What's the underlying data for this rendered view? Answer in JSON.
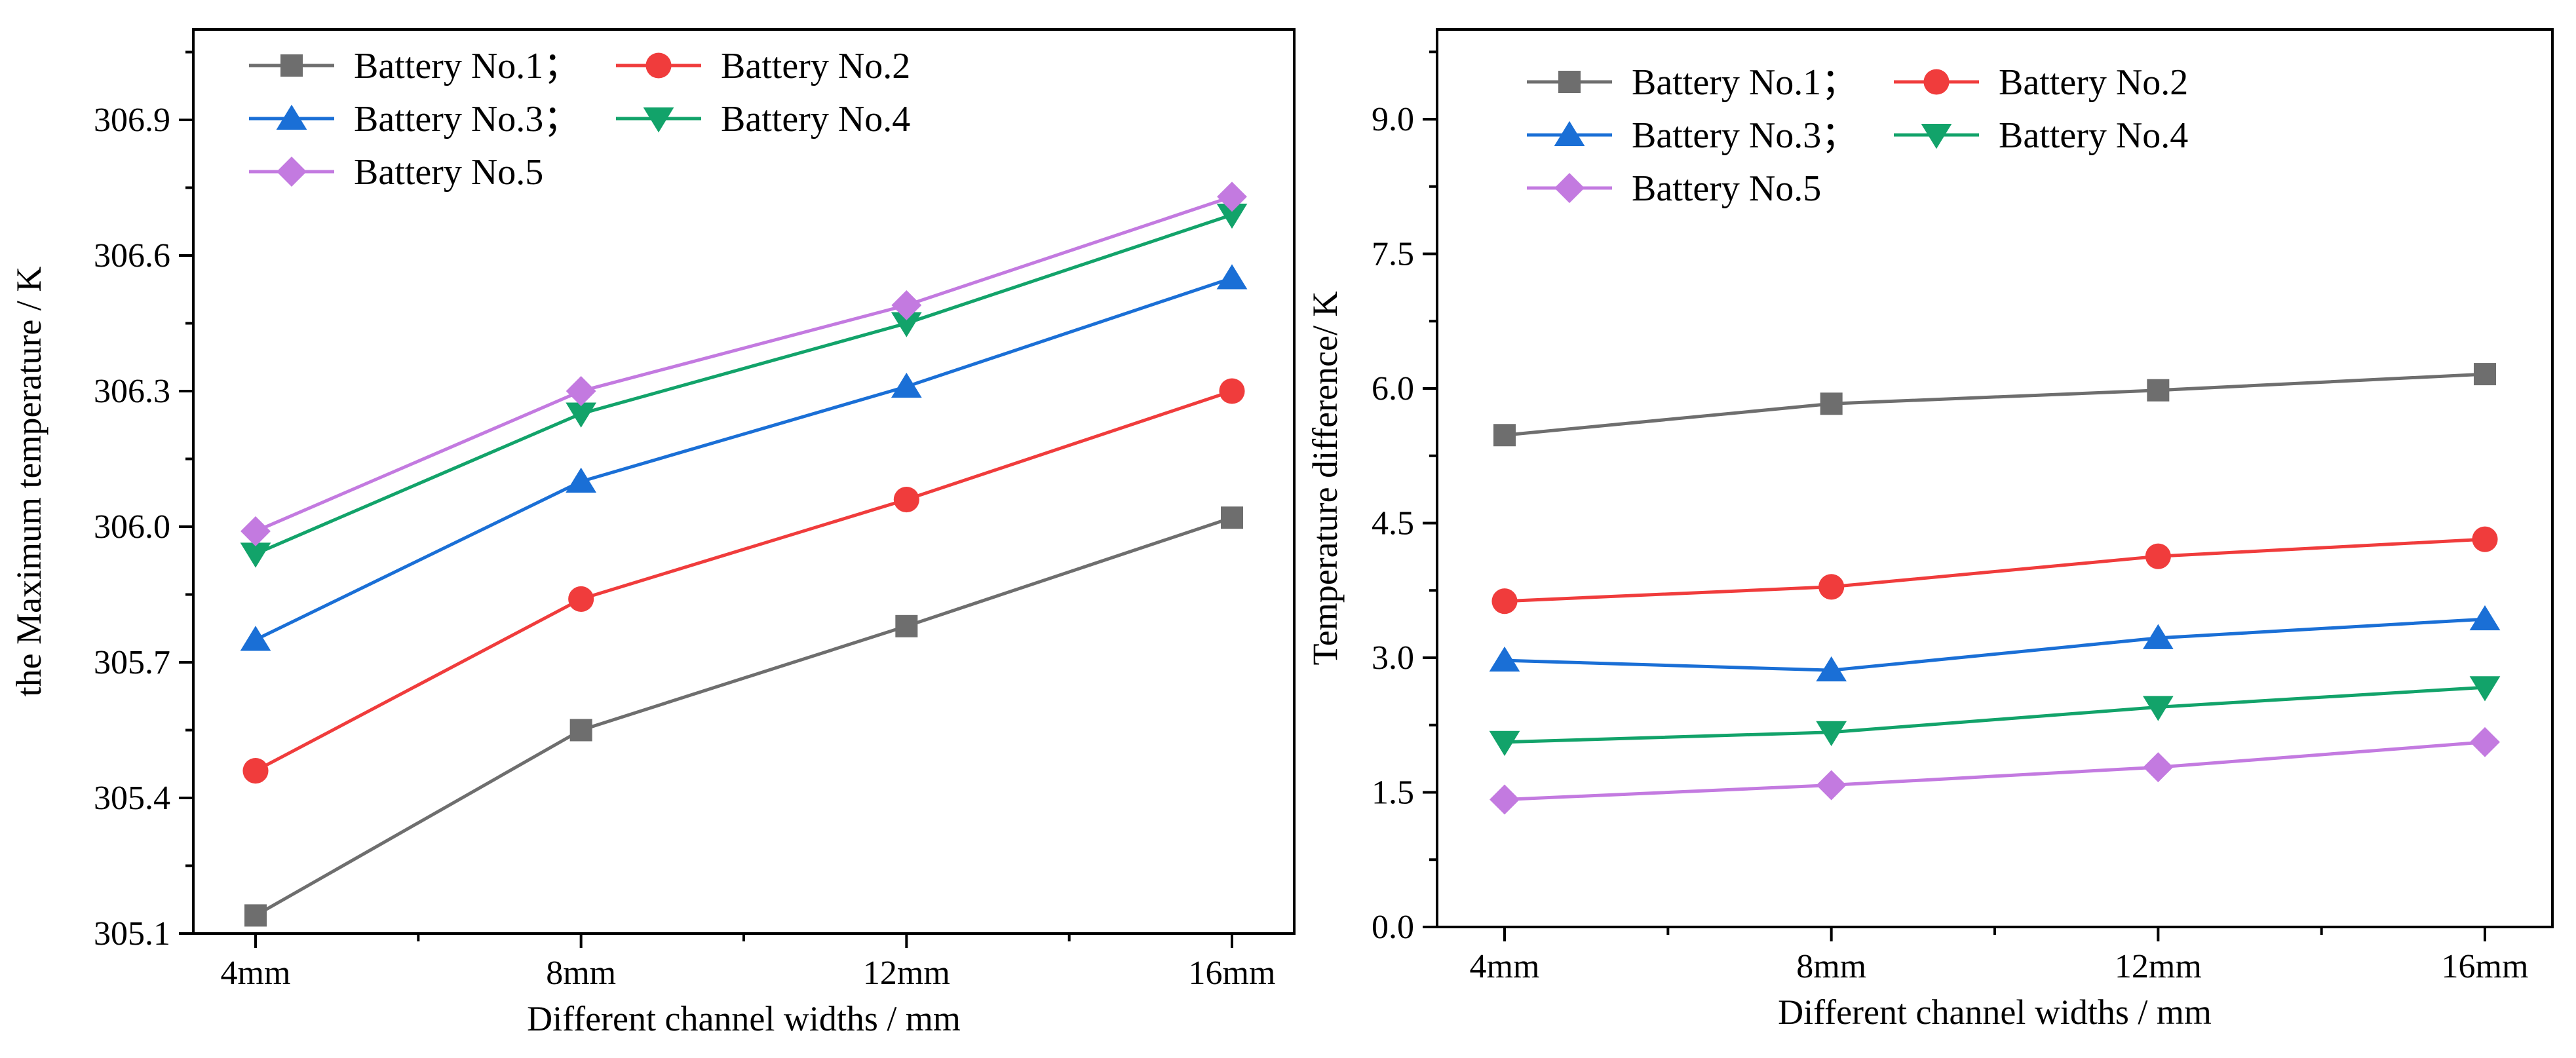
{
  "chart_data": [
    {
      "type": "line",
      "title": "",
      "xlabel": "Different channel widths / mm",
      "ylabel": "the Maximum temperature / K",
      "categories": [
        "4mm",
        "8mm",
        "12mm",
        "16mm"
      ],
      "ylim": [
        305.1,
        307.1
      ],
      "yticks": [
        "305.1",
        "305.4",
        "305.7",
        "306.0",
        "306.3",
        "306.6",
        "306.9"
      ],
      "legend_position": "top-left",
      "grid": false,
      "series": [
        {
          "name": "Battery No.1；",
          "color": "#6e6e6e",
          "marker": "square",
          "values": [
            305.14,
            305.55,
            305.78,
            306.02
          ]
        },
        {
          "name": "Battery No.2",
          "color": "#f03c3c",
          "marker": "circle",
          "values": [
            305.46,
            305.84,
            306.06,
            306.3
          ]
        },
        {
          "name": "Battery No.3；",
          "color": "#1a6fd6",
          "marker": "triangle-up",
          "values": [
            305.75,
            306.1,
            306.31,
            306.55
          ]
        },
        {
          "name": "Battery No.4",
          "color": "#12a36a",
          "marker": "triangle-down",
          "values": [
            305.94,
            306.25,
            306.45,
            306.69
          ]
        },
        {
          "name": "Battery No.5",
          "color": "#c37ae0",
          "marker": "diamond",
          "values": [
            305.99,
            306.3,
            306.49,
            306.73
          ]
        }
      ]
    },
    {
      "type": "line",
      "title": "",
      "xlabel": "Different channel widths / mm",
      "ylabel": "Temperature difference/ K",
      "categories": [
        "4mm",
        "8mm",
        "12mm",
        "16mm"
      ],
      "ylim": [
        0,
        10
      ],
      "yticks": [
        "0.0",
        "1.5",
        "3.0",
        "4.5",
        "6.0",
        "7.5",
        "9.0"
      ],
      "legend_position": "top-left",
      "grid": false,
      "series": [
        {
          "name": "Battery No.1；",
          "color": "#6e6e6e",
          "marker": "square",
          "values": [
            5.48,
            5.83,
            5.98,
            6.16
          ]
        },
        {
          "name": "Battery No.2",
          "color": "#f03c3c",
          "marker": "circle",
          "values": [
            3.63,
            3.79,
            4.13,
            4.32
          ]
        },
        {
          "name": "Battery No.3；",
          "color": "#1a6fd6",
          "marker": "triangle-up",
          "values": [
            2.97,
            2.86,
            3.22,
            3.43
          ]
        },
        {
          "name": "Battery No.4",
          "color": "#12a36a",
          "marker": "triangle-down",
          "values": [
            2.06,
            2.17,
            2.45,
            2.67
          ]
        },
        {
          "name": "Battery No.5",
          "color": "#c37ae0",
          "marker": "diamond",
          "values": [
            1.42,
            1.58,
            1.78,
            2.06
          ]
        }
      ]
    }
  ]
}
